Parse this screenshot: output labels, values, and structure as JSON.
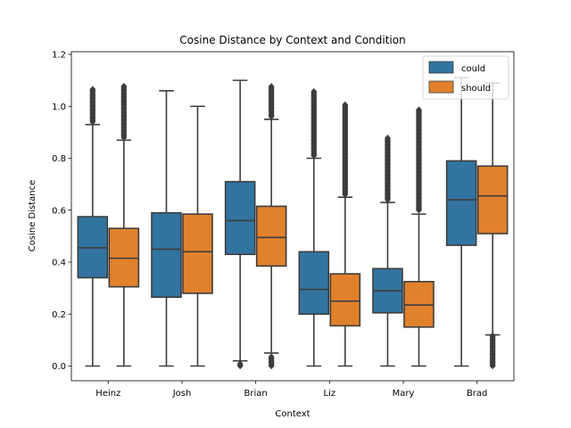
{
  "chart_data": {
    "type": "box",
    "title": "Cosine Distance by Context and Condition",
    "xlabel": "Context",
    "ylabel": "Cosine Distance",
    "ylim": [
      -0.06,
      1.22
    ],
    "yticks": [
      "0.0",
      "0.2",
      "0.4",
      "0.6",
      "0.8",
      "1.0",
      "1.2"
    ],
    "categories": [
      "Heinz",
      "Josh",
      "Brian",
      "Liz",
      "Mary",
      "Brad"
    ],
    "grid": false,
    "legend": {
      "placement": "top-right",
      "entries": [
        "could",
        "should"
      ]
    },
    "series": [
      {
        "name": "could",
        "color": "#3274a1",
        "boxes": [
          {
            "whisker_low": 0.0,
            "q1": 0.34,
            "median": 0.455,
            "q3": 0.575,
            "whisker_high": 0.93,
            "outliers_low": [],
            "outliers_high": [
              0.94,
              0.96,
              0.98,
              1.0,
              1.02,
              1.04,
              1.07
            ]
          },
          {
            "whisker_low": 0.0,
            "q1": 0.265,
            "median": 0.45,
            "q3": 0.59,
            "whisker_high": 1.06,
            "outliers_low": [],
            "outliers_high": []
          },
          {
            "whisker_low": 0.02,
            "q1": 0.43,
            "median": 0.56,
            "q3": 0.71,
            "whisker_high": 1.1,
            "outliers_low": [
              0.0,
              0.01
            ],
            "outliers_high": []
          },
          {
            "whisker_low": 0.0,
            "q1": 0.2,
            "median": 0.295,
            "q3": 0.44,
            "whisker_high": 0.8,
            "outliers_low": [],
            "outliers_high": [
              0.81,
              0.84,
              0.87,
              0.9,
              0.93,
              0.96,
              0.99,
              1.02,
              1.06
            ]
          },
          {
            "whisker_low": 0.0,
            "q1": 0.205,
            "median": 0.29,
            "q3": 0.375,
            "whisker_high": 0.63,
            "outliers_low": [],
            "outliers_high": [
              0.64,
              0.67,
              0.7,
              0.73,
              0.76,
              0.79,
              0.82,
              0.85,
              0.88
            ]
          },
          {
            "whisker_low": 0.0,
            "q1": 0.465,
            "median": 0.64,
            "q3": 0.79,
            "whisker_high": 1.11,
            "outliers_low": [],
            "outliers_high": []
          }
        ]
      },
      {
        "name": "should",
        "color": "#e1812c",
        "boxes": [
          {
            "whisker_low": 0.0,
            "q1": 0.305,
            "median": 0.415,
            "q3": 0.53,
            "whisker_high": 0.87,
            "outliers_low": [],
            "outliers_high": [
              0.88,
              0.91,
              0.94,
              0.97,
              1.0,
              1.03,
              1.06,
              1.08
            ]
          },
          {
            "whisker_low": 0.0,
            "q1": 0.28,
            "median": 0.44,
            "q3": 0.585,
            "whisker_high": 1.0,
            "outliers_low": [],
            "outliers_high": []
          },
          {
            "whisker_low": 0.05,
            "q1": 0.385,
            "median": 0.495,
            "q3": 0.615,
            "whisker_high": 0.95,
            "outliers_low": [
              0.0,
              0.02,
              0.04
            ],
            "outliers_high": [
              0.96,
              0.99,
              1.02,
              1.05,
              1.08
            ]
          },
          {
            "whisker_low": 0.0,
            "q1": 0.155,
            "median": 0.25,
            "q3": 0.355,
            "whisker_high": 0.65,
            "outliers_low": [],
            "outliers_high": [
              0.66,
              0.7,
              0.74,
              0.78,
              0.82,
              0.86,
              0.9,
              0.94,
              0.98,
              1.01
            ]
          },
          {
            "whisker_low": 0.0,
            "q1": 0.15,
            "median": 0.235,
            "q3": 0.325,
            "whisker_high": 0.585,
            "outliers_low": [],
            "outliers_high": [
              0.6,
              0.64,
              0.68,
              0.72,
              0.76,
              0.8,
              0.84,
              0.88,
              0.92,
              0.96,
              0.99
            ]
          },
          {
            "whisker_low": 0.12,
            "q1": 0.51,
            "median": 0.655,
            "q3": 0.77,
            "whisker_high": 1.09,
            "outliers_low": [
              0.0,
              0.02,
              0.04,
              0.06,
              0.08,
              0.1,
              0.12
            ],
            "outliers_high": []
          }
        ]
      }
    ]
  }
}
